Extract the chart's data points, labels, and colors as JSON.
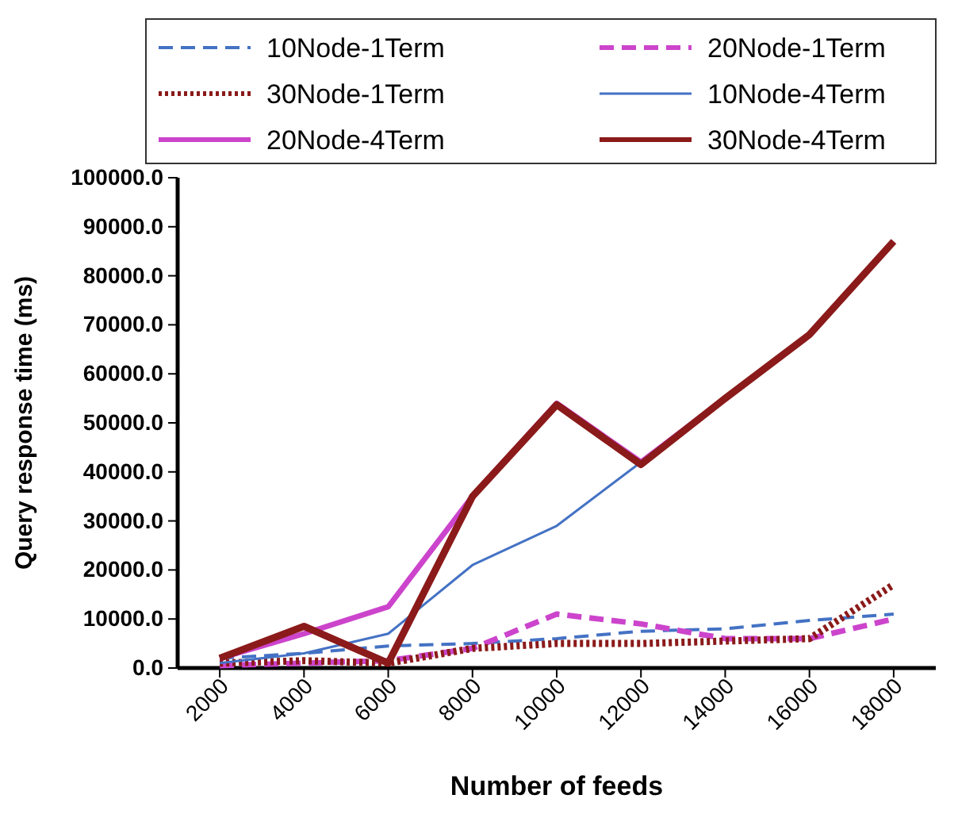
{
  "chart_data": {
    "type": "line",
    "xlabel": "Number of feeds",
    "ylabel": "Query response time (ms)",
    "categories": [
      "2000",
      "4000",
      "6000",
      "8000",
      "10000",
      "12000",
      "14000",
      "16000",
      "18000"
    ],
    "ylim": [
      0,
      100000
    ],
    "yticks": [
      {
        "value": 0,
        "label": "0.0"
      },
      {
        "value": 10000,
        "label": "10000.0"
      },
      {
        "value": 20000,
        "label": "20000.0"
      },
      {
        "value": 30000,
        "label": "30000.0"
      },
      {
        "value": 40000,
        "label": "40000.0"
      },
      {
        "value": 50000,
        "label": "50000.0"
      },
      {
        "value": 60000,
        "label": "60000.0"
      },
      {
        "value": 70000,
        "label": "70000.0"
      },
      {
        "value": 80000,
        "label": "80000.0"
      },
      {
        "value": 90000,
        "label": "90000.0"
      },
      {
        "value": 100000,
        "label": "100000.0"
      }
    ],
    "grid": false,
    "legend": "top",
    "marker": "none",
    "series": [
      {
        "name": "10Node-1Term",
        "color": "#4472c4",
        "line_style": "dashed",
        "values": [
          2000,
          3000,
          4500,
          5000,
          6000,
          7500,
          8000,
          9700,
          11000
        ]
      },
      {
        "name": "20Node-1Term",
        "color": "#cc44cc",
        "line_style": "dashed",
        "values": [
          500,
          1000,
          1500,
          4000,
          11000,
          9000,
          6000,
          6000,
          10000
        ]
      },
      {
        "name": "30Node-1Term",
        "color": "#8b1a1a",
        "line_style": "dotted",
        "values": [
          1000,
          1500,
          1000,
          4000,
          5000,
          5000,
          5500,
          6000,
          17000
        ]
      },
      {
        "name": "10Node-4Term",
        "color": "#4472c4",
        "line_style": "solid",
        "values": [
          1000,
          3000,
          7000,
          21000,
          29000,
          42000,
          null,
          null,
          null
        ]
      },
      {
        "name": "20Node-4Term",
        "color": "#cc44cc",
        "line_style": "solid",
        "values": [
          2000,
          7000,
          12500,
          35000,
          54000,
          42000,
          55000,
          68000,
          87000
        ]
      },
      {
        "name": "30Node-4Term",
        "color": "#8b1a1a",
        "line_style": "solid",
        "values": [
          2000,
          8500,
          1000,
          35000,
          53700,
          41500,
          55000,
          68000,
          87000
        ]
      }
    ]
  }
}
